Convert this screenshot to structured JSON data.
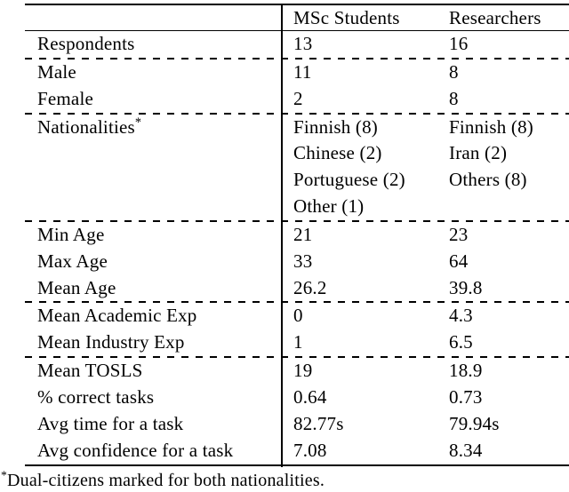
{
  "table": {
    "header": {
      "msc": "MSc Students",
      "res": "Researchers"
    },
    "rows": [
      {
        "label": "Respondents",
        "msc": "13",
        "res": "16"
      },
      {
        "label": "Male",
        "msc": "11",
        "res": "8"
      },
      {
        "label": "Female",
        "msc": "2",
        "res": "8"
      },
      {
        "label": "Nationalities",
        "marker": "*",
        "msc": "Finnish (8)",
        "res": "Finnish (8)"
      },
      {
        "label": "",
        "msc": "Chinese (2)",
        "res": "Iran (2)"
      },
      {
        "label": "",
        "msc": "Portuguese (2)",
        "res": "Others (8)"
      },
      {
        "label": "",
        "msc": "Other (1)",
        "res": ""
      },
      {
        "label": "Min Age",
        "msc": "21",
        "res": "23"
      },
      {
        "label": "Max Age",
        "msc": "33",
        "res": "64"
      },
      {
        "label": "Mean Age",
        "msc": "26.2",
        "res": "39.8"
      },
      {
        "label": "Mean Academic Exp",
        "msc": "0",
        "res": "4.3"
      },
      {
        "label": "Mean Industry Exp",
        "msc": "1",
        "res": "6.5"
      },
      {
        "label": "Mean TOSLS",
        "msc": "19",
        "res": "18.9"
      },
      {
        "label": "% correct tasks",
        "msc": "0.64",
        "res": "0.73"
      },
      {
        "label": "Avg time for a task",
        "msc": "82.77s",
        "res": "79.94s"
      },
      {
        "label": "Avg confidence for a task",
        "msc": "7.08",
        "res": "8.34"
      }
    ]
  },
  "footnote": {
    "marker": "*",
    "text": "Dual-citizens marked for both nationalities."
  },
  "colors": {
    "background": "#ffffff",
    "text": "#000000",
    "rule": "#000000"
  }
}
